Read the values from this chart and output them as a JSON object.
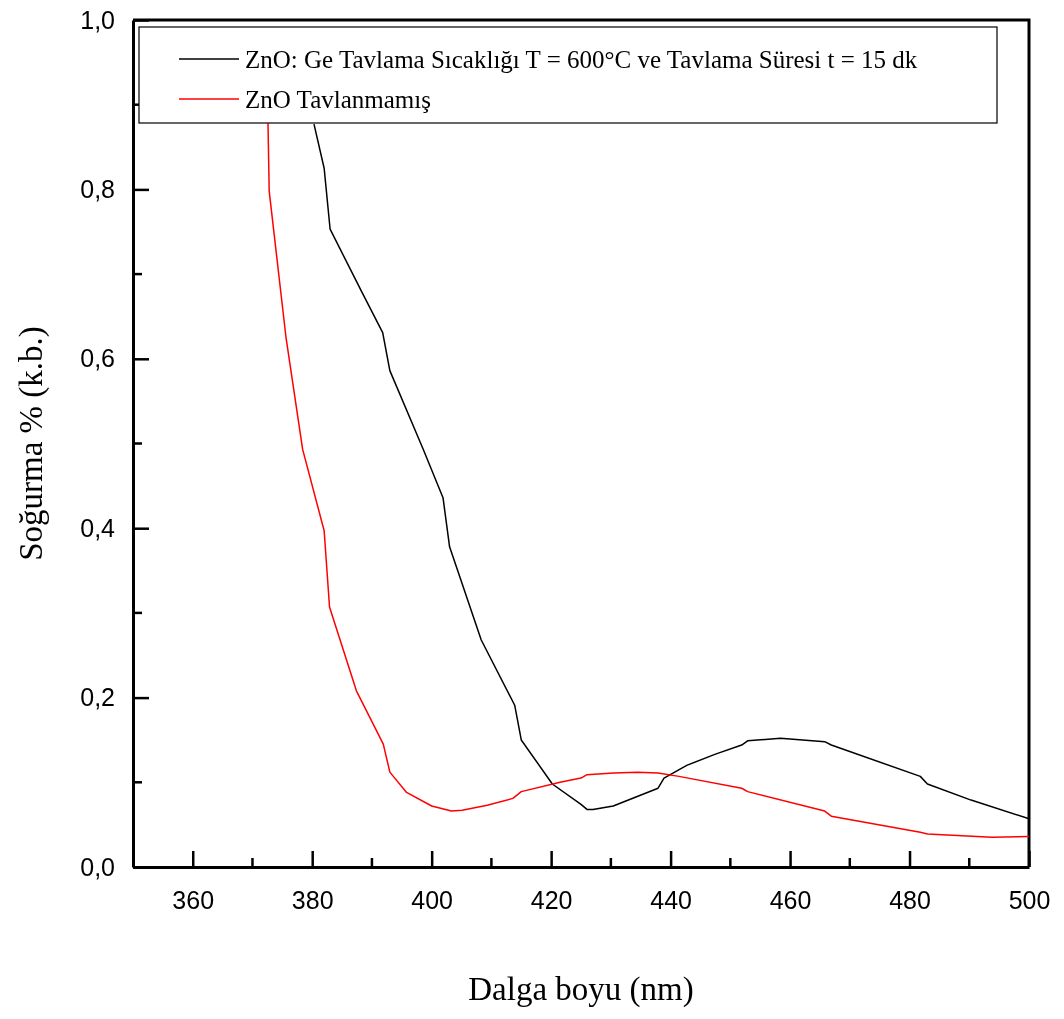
{
  "chart_data": {
    "type": "line",
    "xlabel": "Dalga boyu (nm)",
    "ylabel": "Soğurma % (k.b.)",
    "xlim": [
      350,
      500
    ],
    "xticks": [
      {
        "value": 350,
        "label": null
      },
      360,
      380,
      400,
      420,
      440,
      460,
      480,
      500
    ],
    "ylim": [
      0,
      1
    ],
    "yticks": [
      {
        "value": 0,
        "label": "0,0"
      },
      {
        "value": 0.2,
        "label": "0,2"
      },
      {
        "value": 0.4,
        "label": "0,4"
      },
      {
        "value": 0.6,
        "label": "0,6"
      },
      {
        "value": 0.8,
        "label": "0,8"
      },
      {
        "value": 1,
        "label": "1,0"
      }
    ],
    "grid": false,
    "legend": "top",
    "line_style": "solid",
    "marker": "none",
    "series": [
      {
        "name": "ZnO: Ge Tavlama Sıcaklığı T = 600°C ve Tavlama Süresi t = 15 dk",
        "color": "#000000",
        "x": [
          380.3,
          382,
          383,
          388.3,
          391.8,
          393,
          398.6,
          401.9,
          403,
          408.3,
          413.9,
          415,
          420.2,
          425,
          426,
          427,
          430.4,
          437.9,
          438.9,
          442.7,
          447.4,
          451.9,
          452.9,
          458.4,
          465.8,
          466.9,
          481.8,
          483,
          490.3,
          500
        ],
        "values": [
          0.877,
          0.825,
          0.753,
          0.679,
          0.631,
          0.586,
          0.493,
          0.436,
          0.378,
          0.268,
          0.191,
          0.15,
          0.098,
          0.074,
          0.068,
          0.068,
          0.072,
          0.093,
          0.105,
          0.12,
          0.133,
          0.144,
          0.149,
          0.152,
          0.148,
          0.144,
          0.107,
          0.098,
          0.079,
          0.057
        ]
      },
      {
        "name": "ZnO Tavlanmamış",
        "color": "#ff0000",
        "x": [
          372.6,
          372.8,
          375.6,
          378.4,
          382,
          382.9,
          387.4,
          391.9,
          393,
          395.8,
          400,
          403.3,
          405.1,
          409.3,
          413.6,
          415,
          421.5,
          425,
          426,
          430.4,
          434.5,
          437.9,
          441.4,
          451.9,
          452.9,
          465.8,
          466.9,
          481.8,
          483,
          493.8,
          500
        ],
        "values": [
          0.878,
          0.798,
          0.626,
          0.493,
          0.397,
          0.307,
          0.208,
          0.145,
          0.112,
          0.088,
          0.072,
          0.066,
          0.067,
          0.073,
          0.081,
          0.089,
          0.1,
          0.105,
          0.109,
          0.111,
          0.112,
          0.111,
          0.107,
          0.093,
          0.089,
          0.066,
          0.06,
          0.041,
          0.039,
          0.035,
          0.036
        ]
      }
    ]
  }
}
